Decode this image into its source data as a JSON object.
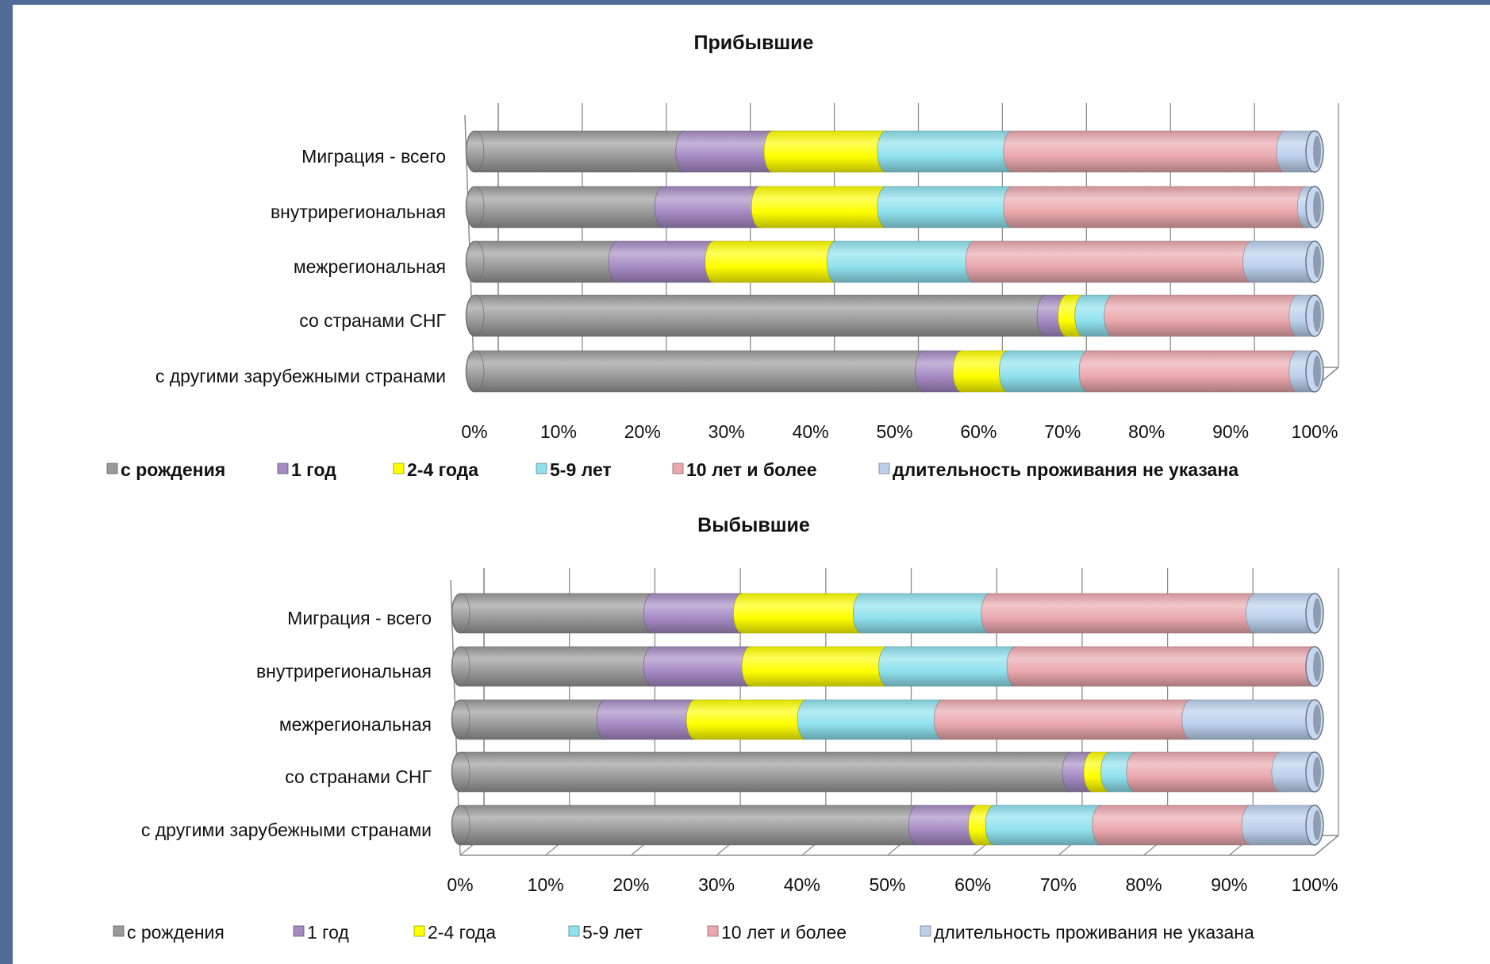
{
  "colors": {
    "с рождения": "#9a9a9a",
    "1 год": "#a58bc4",
    "2-4 года": "#ffff00",
    "5-9 лет": "#8fe1ee",
    "10 лет и более": "#eaa8ae",
    "длительность проживания не указана": "#bcd0ec"
  },
  "chart_data": [
    {
      "type": "bar",
      "orientation": "horizontal",
      "stacked": "percent",
      "title": "Прибывшие",
      "categories": [
        "Миграция - всего",
        "внутрирегиональная",
        "межрегиональная",
        "со странами СНГ",
        "с другими зарубежными странами"
      ],
      "ticks": [
        "0%",
        "10%",
        "20%",
        "30%",
        "40%",
        "50%",
        "60%",
        "70%",
        "80%",
        "90%",
        "100%"
      ],
      "xlim": [
        0,
        100
      ],
      "legend_position": "bottom",
      "series": [
        {
          "name": "с рождения",
          "values": [
            25,
            22.5,
            17,
            68,
            53.5
          ]
        },
        {
          "name": "1 год",
          "values": [
            10.5,
            11.5,
            11.5,
            2.5,
            4.5
          ]
        },
        {
          "name": "2-4 года",
          "values": [
            13.5,
            15,
            14.5,
            2,
            5.5
          ]
        },
        {
          "name": "5-9 лет",
          "values": [
            15,
            15,
            16.5,
            3.5,
            9.5
          ]
        },
        {
          "name": "10 лет и более",
          "values": [
            32.5,
            35,
            33,
            22,
            25
          ]
        },
        {
          "name": "длительность проживания не указана",
          "values": [
            3.5,
            1,
            7.5,
            2,
            2
          ]
        }
      ]
    },
    {
      "type": "bar",
      "orientation": "horizontal",
      "stacked": "percent",
      "title": "Выбывшие",
      "categories": [
        "Миграция - всего",
        "внутрирегиональная",
        "межрегиональная",
        "со странами СНГ",
        "с другими зарубежными странами"
      ],
      "ticks": [
        "0%",
        "10%",
        "20%",
        "30%",
        "40%",
        "50%",
        "60%",
        "70%",
        "80%",
        "90%",
        "100%"
      ],
      "xlim": [
        0,
        100
      ],
      "legend_position": "bottom",
      "series": [
        {
          "name": "с рождения",
          "values": [
            22.5,
            22.5,
            17,
            71.5,
            53.5
          ]
        },
        {
          "name": "1 год",
          "values": [
            10.5,
            11.5,
            10.5,
            2.5,
            7
          ]
        },
        {
          "name": "2-4 года",
          "values": [
            14,
            16,
            13,
            2,
            2
          ]
        },
        {
          "name": "5-9 лет",
          "values": [
            15,
            15,
            16,
            3,
            12.5
          ]
        },
        {
          "name": "10 лет и более",
          "values": [
            31,
            35,
            29,
            17,
            17.5
          ]
        },
        {
          "name": "длительность проживания не указана",
          "values": [
            7,
            0,
            14.5,
            4,
            7.5
          ]
        }
      ]
    }
  ]
}
